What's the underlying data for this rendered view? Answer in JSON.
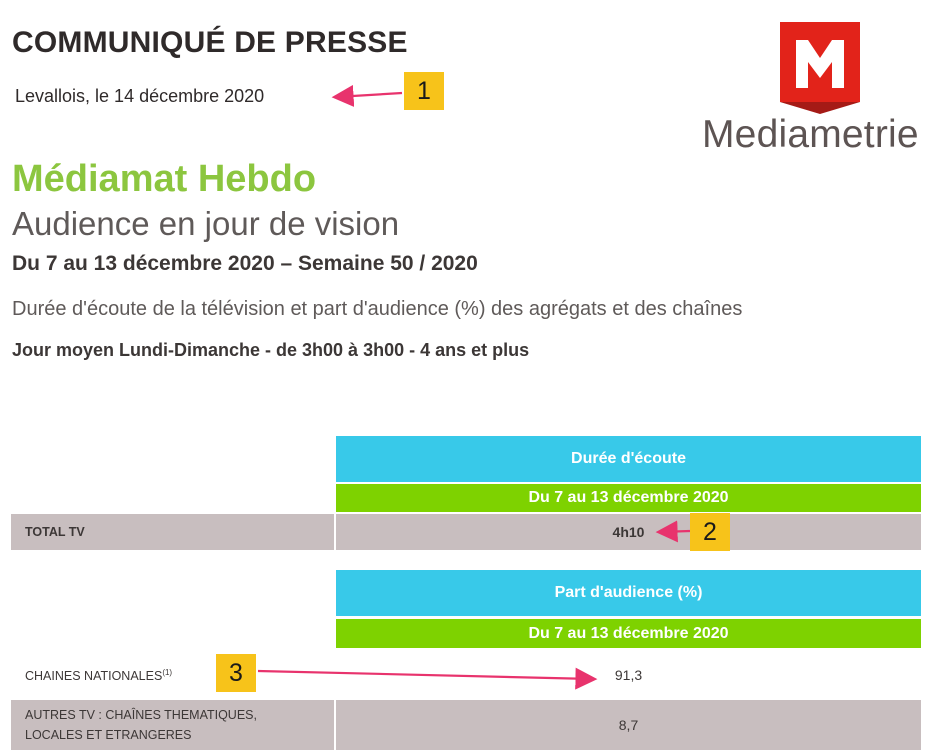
{
  "header": {
    "press_title": "COMMUNIQUÉ DE PRESSE",
    "dateline": "Levallois, le 14 décembre 2020",
    "logo_letter": "M",
    "logo_word": "Mediametrie"
  },
  "title": {
    "main": "Médiamat Hebdo",
    "sub": "Audience en jour de vision",
    "period": "Du 7 au 13 décembre 2020 – Semaine 50 / 2020",
    "description": "Durée d'écoute de la télévision et part d'audience (%) des agrégats et des chaînes",
    "scope": "Jour moyen Lundi-Dimanche - de 3h00 à 3h00 - 4 ans et plus"
  },
  "table1": {
    "header": "Durée d'écoute",
    "subheader": "Du 7 au 13 décembre 2020",
    "rows": [
      {
        "label": "TOTAL TV",
        "value": "4h10"
      }
    ]
  },
  "table2": {
    "header": "Part d'audience (%)",
    "subheader": "Du 7 au 13 décembre 2020",
    "rows": [
      {
        "label": "CHAINES NATIONALES",
        "sup": "(1)",
        "value": "91,3"
      },
      {
        "label_line1": "AUTRES TV : CHAÎNES THEMATIQUES,",
        "label_line2": "LOCALES ET ETRANGERES",
        "value": "8,7"
      }
    ]
  },
  "annotations": {
    "badges": [
      "1",
      "2",
      "3"
    ]
  },
  "colors": {
    "green_title": "#8cc63f",
    "header_blue": "#38c9e9",
    "header_green": "#7ed200",
    "row_gray": "#c8bebf",
    "badge_yellow": "#f7c31a",
    "arrow_pink": "#e8336d",
    "logo_red": "#e2231a"
  }
}
